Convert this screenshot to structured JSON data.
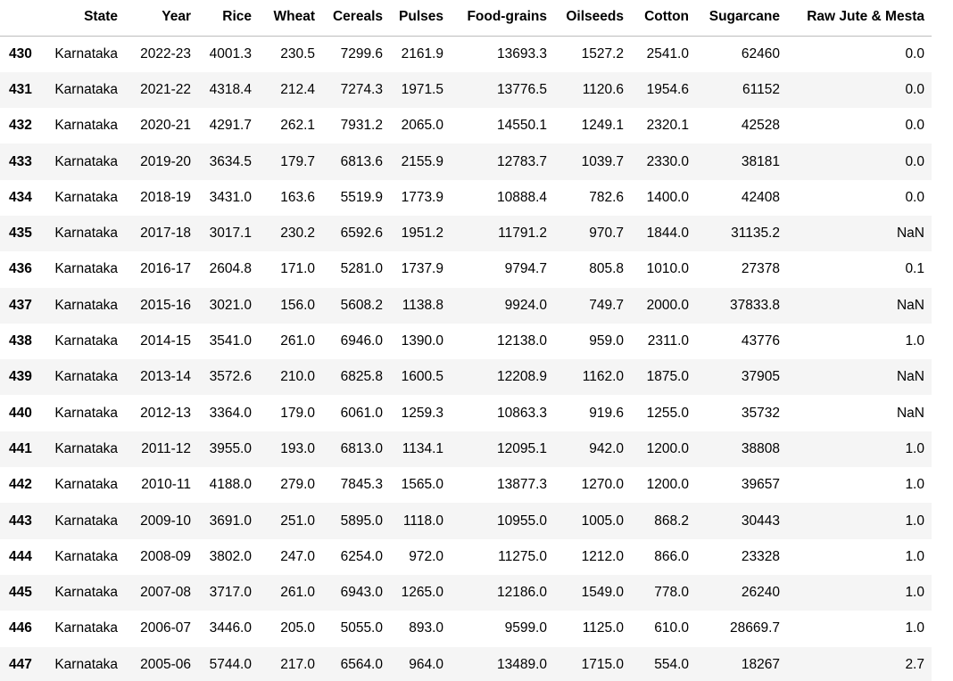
{
  "table": {
    "index_header": "",
    "columns": [
      "State",
      "Year",
      "Rice",
      "Wheat",
      "Cereals",
      "Pulses",
      "Food-grains",
      "Oilseeds",
      "Cotton",
      "Sugarcane",
      "Raw Jute & Mesta"
    ],
    "rows": [
      {
        "index": "430",
        "cells": [
          "Karnataka",
          "2022-23",
          "4001.3",
          "230.5",
          "7299.6",
          "2161.9",
          "13693.3",
          "1527.2",
          "2541.0",
          "62460",
          "0.0"
        ]
      },
      {
        "index": "431",
        "cells": [
          "Karnataka",
          "2021-22",
          "4318.4",
          "212.4",
          "7274.3",
          "1971.5",
          "13776.5",
          "1120.6",
          "1954.6",
          "61152",
          "0.0"
        ]
      },
      {
        "index": "432",
        "cells": [
          "Karnataka",
          "2020-21",
          "4291.7",
          "262.1",
          "7931.2",
          "2065.0",
          "14550.1",
          "1249.1",
          "2320.1",
          "42528",
          "0.0"
        ]
      },
      {
        "index": "433",
        "cells": [
          "Karnataka",
          "2019-20",
          "3634.5",
          "179.7",
          "6813.6",
          "2155.9",
          "12783.7",
          "1039.7",
          "2330.0",
          "38181",
          "0.0"
        ]
      },
      {
        "index": "434",
        "cells": [
          "Karnataka",
          "2018-19",
          "3431.0",
          "163.6",
          "5519.9",
          "1773.9",
          "10888.4",
          "782.6",
          "1400.0",
          "42408",
          "0.0"
        ]
      },
      {
        "index": "435",
        "cells": [
          "Karnataka",
          "2017-18",
          "3017.1",
          "230.2",
          "6592.6",
          "1951.2",
          "11791.2",
          "970.7",
          "1844.0",
          "31135.2",
          "NaN"
        ]
      },
      {
        "index": "436",
        "cells": [
          "Karnataka",
          "2016-17",
          "2604.8",
          "171.0",
          "5281.0",
          "1737.9",
          "9794.7",
          "805.8",
          "1010.0",
          "27378",
          "0.1"
        ]
      },
      {
        "index": "437",
        "cells": [
          "Karnataka",
          "2015-16",
          "3021.0",
          "156.0",
          "5608.2",
          "1138.8",
          "9924.0",
          "749.7",
          "2000.0",
          "37833.8",
          "NaN"
        ]
      },
      {
        "index": "438",
        "cells": [
          "Karnataka",
          "2014-15",
          "3541.0",
          "261.0",
          "6946.0",
          "1390.0",
          "12138.0",
          "959.0",
          "2311.0",
          "43776",
          "1.0"
        ]
      },
      {
        "index": "439",
        "cells": [
          "Karnataka",
          "2013-14",
          "3572.6",
          "210.0",
          "6825.8",
          "1600.5",
          "12208.9",
          "1162.0",
          "1875.0",
          "37905",
          "NaN"
        ]
      },
      {
        "index": "440",
        "cells": [
          "Karnataka",
          "2012-13",
          "3364.0",
          "179.0",
          "6061.0",
          "1259.3",
          "10863.3",
          "919.6",
          "1255.0",
          "35732",
          "NaN"
        ]
      },
      {
        "index": "441",
        "cells": [
          "Karnataka",
          "2011-12",
          "3955.0",
          "193.0",
          "6813.0",
          "1134.1",
          "12095.1",
          "942.0",
          "1200.0",
          "38808",
          "1.0"
        ]
      },
      {
        "index": "442",
        "cells": [
          "Karnataka",
          "2010-11",
          "4188.0",
          "279.0",
          "7845.3",
          "1565.0",
          "13877.3",
          "1270.0",
          "1200.0",
          "39657",
          "1.0"
        ]
      },
      {
        "index": "443",
        "cells": [
          "Karnataka",
          "2009-10",
          "3691.0",
          "251.0",
          "5895.0",
          "1118.0",
          "10955.0",
          "1005.0",
          "868.2",
          "30443",
          "1.0"
        ]
      },
      {
        "index": "444",
        "cells": [
          "Karnataka",
          "2008-09",
          "3802.0",
          "247.0",
          "6254.0",
          "972.0",
          "11275.0",
          "1212.0",
          "866.0",
          "23328",
          "1.0"
        ]
      },
      {
        "index": "445",
        "cells": [
          "Karnataka",
          "2007-08",
          "3717.0",
          "261.0",
          "6943.0",
          "1265.0",
          "12186.0",
          "1549.0",
          "778.0",
          "26240",
          "1.0"
        ]
      },
      {
        "index": "446",
        "cells": [
          "Karnataka",
          "2006-07",
          "3446.0",
          "205.0",
          "5055.0",
          "893.0",
          "9599.0",
          "1125.0",
          "610.0",
          "28669.7",
          "1.0"
        ]
      },
      {
        "index": "447",
        "cells": [
          "Karnataka",
          "2005-06",
          "5744.0",
          "217.0",
          "6564.0",
          "964.0",
          "13489.0",
          "1715.0",
          "554.0",
          "18267",
          "2.7"
        ]
      }
    ]
  }
}
